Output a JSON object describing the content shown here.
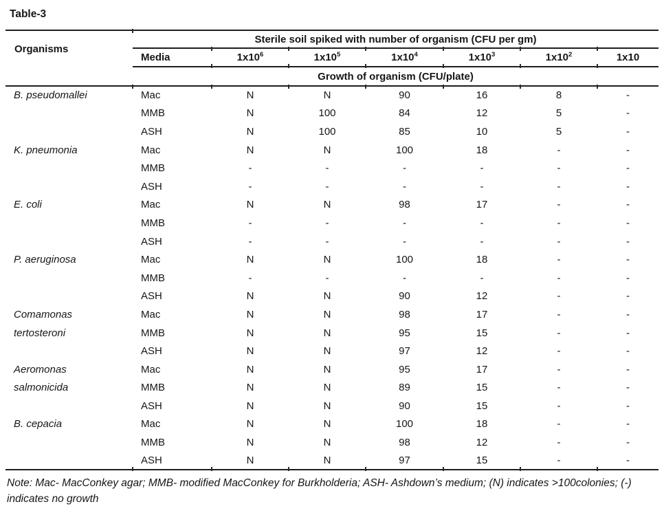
{
  "page": {
    "title": "Table-3"
  },
  "table": {
    "headers": {
      "organisms": "Organisms",
      "spanning": "Sterile soil spiked with number of organism (CFU per gm)",
      "media": "Media",
      "growth": "Growth of organism (CFU/plate)",
      "concentrations": [
        {
          "base": "1x10",
          "exp": "6"
        },
        {
          "base": "1x10",
          "exp": "5"
        },
        {
          "base": "1x10",
          "exp": "4"
        },
        {
          "base": "1x10",
          "exp": "3"
        },
        {
          "base": "1x10",
          "exp": "2"
        },
        {
          "base": "1x10",
          "exp": ""
        }
      ]
    },
    "rows": [
      {
        "organism": "B. pseudomallei",
        "media": "Mac",
        "values": [
          "N",
          "N",
          "90",
          "16",
          "8",
          "-"
        ]
      },
      {
        "organism": "",
        "media": "MMB",
        "values": [
          "N",
          "100",
          "84",
          "12",
          "5",
          "-"
        ]
      },
      {
        "organism": "",
        "media": "ASH",
        "values": [
          "N",
          "100",
          "85",
          "10",
          "5",
          "-"
        ]
      },
      {
        "organism": "K. pneumonia",
        "media": "Mac",
        "values": [
          "N",
          "N",
          "100",
          "18",
          "-",
          "-"
        ]
      },
      {
        "organism": "",
        "media": "MMB",
        "values": [
          "-",
          "-",
          "-",
          "-",
          "-",
          "-"
        ]
      },
      {
        "organism": "",
        "media": "ASH",
        "values": [
          "-",
          "-",
          "-",
          "-",
          "-",
          "-"
        ]
      },
      {
        "organism": "E. coli",
        "media": "Mac",
        "values": [
          "N",
          "N",
          "98",
          "17",
          "-",
          "-"
        ]
      },
      {
        "organism": "",
        "media": "MMB",
        "values": [
          "-",
          "-",
          "-",
          "-",
          "-",
          "-"
        ]
      },
      {
        "organism": "",
        "media": "ASH",
        "values": [
          "-",
          "-",
          "-",
          "-",
          "-",
          "-"
        ]
      },
      {
        "organism": "P. aeruginosa",
        "media": "Mac",
        "values": [
          "N",
          "N",
          "100",
          "18",
          "-",
          "-"
        ]
      },
      {
        "organism": "",
        "media": "MMB",
        "values": [
          "-",
          "-",
          "-",
          "-",
          "-",
          "-"
        ]
      },
      {
        "organism": "",
        "media": "ASH",
        "values": [
          "N",
          "N",
          "90",
          "12",
          "-",
          "-"
        ]
      },
      {
        "organism": "Comamonas",
        "media": "Mac",
        "values": [
          "N",
          "N",
          "98",
          "17",
          "-",
          "-"
        ]
      },
      {
        "organism": "tertosteroni",
        "media": "MMB",
        "values": [
          "N",
          "N",
          "95",
          "15",
          "-",
          "-"
        ]
      },
      {
        "organism": "",
        "media": "ASH",
        "values": [
          "N",
          "N",
          "97",
          "12",
          "-",
          "-"
        ]
      },
      {
        "organism": "Aeromonas",
        "media": "Mac",
        "values": [
          "N",
          "N",
          "95",
          "17",
          "-",
          "-"
        ]
      },
      {
        "organism": "salmonicida",
        "media": "MMB",
        "values": [
          "N",
          "N",
          "89",
          "15",
          "-",
          "-"
        ]
      },
      {
        "organism": "",
        "media": "ASH",
        "values": [
          "N",
          "N",
          "90",
          "15",
          "-",
          "-"
        ]
      },
      {
        "organism": "B. cepacia",
        "media": "Mac",
        "values": [
          "N",
          "N",
          "100",
          "18",
          "-",
          "-"
        ]
      },
      {
        "organism": "",
        "media": "MMB",
        "values": [
          "N",
          "N",
          "98",
          "12",
          "-",
          "-"
        ]
      },
      {
        "organism": "",
        "media": "ASH",
        "values": [
          "N",
          "N",
          "97",
          "15",
          "-",
          "-"
        ]
      }
    ]
  },
  "note": "Note: Mac- MacConkey agar; MMB- modified MacConkey for Burkholderia; ASH- Ashdown’s medium; (N) indicates >100colonies; (-) indicates no growth",
  "colors": {
    "text": "#161616",
    "rule": "#1d1d1d",
    "background": "#ffffff"
  }
}
